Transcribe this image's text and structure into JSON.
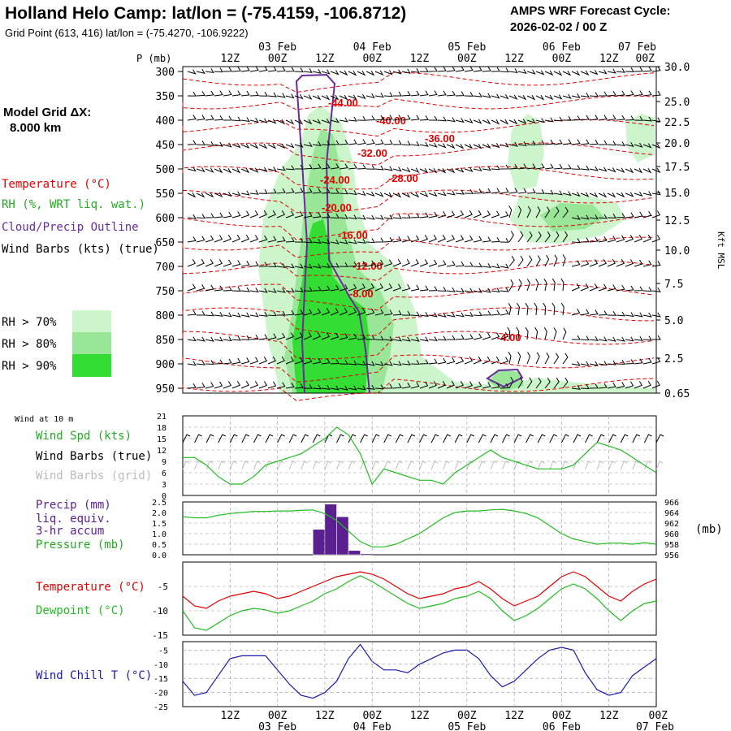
{
  "header": {
    "title": "Holland Helo Camp:  lat/lon = (-75.4159, -106.8712)",
    "subtitle": "Grid Point (613, 416) lat/lon = (-75.4270, -106.9222)",
    "cycle_label": "AMPS WRF Forecast Cycle:",
    "cycle_value": "2026-02-02 / 00  Z"
  },
  "left_panel": {
    "grid_label": "Model Grid ΔX:",
    "grid_value": "8.000 km",
    "legend_temp": "Temperature (°C)",
    "legend_rh": "RH (%, WRT liq. wat.)",
    "legend_cloud": "Cloud/Precip Outline",
    "legend_wind": "Wind Barbs (kts) (true)",
    "rh70": "RH > 70%",
    "rh80": "RH > 80%",
    "rh90": "RH > 90%"
  },
  "colors": {
    "temperature": "#e00000",
    "rh70": "#ccf5cc",
    "rh80": "#99e699",
    "rh90": "#33dd33",
    "cloud": "#6a2a9a",
    "precip": "#5a2090",
    "pressure": "#22aa22",
    "wind": "#000000",
    "windchill": "#1a1aaa",
    "dewpoint": "#22bb22",
    "grid": "#999999"
  },
  "time_axis": {
    "top_hours": [
      "12Z",
      "00Z",
      "12Z",
      "00Z",
      "12Z",
      "00Z",
      "12Z",
      "00Z",
      "12Z",
      "00Z"
    ],
    "top_dates": [
      "03 Feb",
      "04 Feb",
      "05 Feb",
      "06 Feb",
      "07 Feb"
    ],
    "bottom_hours": [
      "12Z",
      "00Z",
      "12Z",
      "00Z",
      "12Z",
      "00Z",
      "12Z",
      "00Z",
      "12Z",
      "00Z"
    ],
    "bottom_dates": [
      "03 Feb",
      "04 Feb",
      "05 Feb",
      "06 Feb",
      "07 Feb"
    ]
  },
  "chart_data": [
    {
      "type": "heatmap",
      "name": "sounding",
      "ylabel": "P (mb)",
      "y2label": "Kft MSL",
      "pressure_levels": [
        300,
        350,
        400,
        450,
        500,
        550,
        600,
        650,
        700,
        750,
        800,
        850,
        900,
        950
      ],
      "height_ticks": [
        "30.0",
        "25.0",
        "22.5",
        "20.0",
        "17.5",
        "15.0",
        "12.5",
        "10.0",
        "7.5",
        "5.0",
        "2.5",
        "0.65"
      ],
      "temp_labels": [
        "-44.00",
        "-40.00",
        "-36.00",
        "-32.00",
        "-28.00",
        "-24.00",
        "-20.00",
        "-16.00",
        "-12.00",
        "-8.00",
        "-4.00"
      ]
    },
    {
      "type": "line",
      "name": "wind10m",
      "header": "Wind at 10 m",
      "legend": [
        "Wind Spd (kts)",
        "Wind Barbs (true)",
        "Wind Barbs (grid)"
      ],
      "yticks": [
        "21",
        "18",
        "15",
        "12",
        "9",
        "6",
        "3",
        "0"
      ],
      "ylim": [
        0,
        21
      ],
      "x": [
        0,
        3,
        6,
        9,
        12,
        15,
        18,
        21,
        24,
        27,
        30,
        33,
        36,
        39,
        42,
        45,
        48,
        51,
        54,
        57,
        60,
        63,
        66,
        69,
        72,
        75,
        78,
        81,
        84,
        87,
        90,
        93,
        96,
        99,
        102,
        105,
        108,
        111,
        114,
        117,
        120
      ],
      "values": [
        10,
        10,
        8,
        5,
        3,
        3,
        5,
        8,
        9,
        10,
        11,
        13,
        15,
        18,
        16,
        11,
        3,
        7,
        6,
        5,
        4,
        4,
        3,
        6,
        8,
        10,
        12,
        10,
        9,
        8,
        7,
        7,
        7,
        8,
        11,
        14,
        13,
        12,
        10,
        8,
        6
      ]
    },
    {
      "type": "bar",
      "name": "precip",
      "legend": [
        "Precip (mm)",
        "liq. equiv.",
        "3-hr accum",
        "Pressure (mb)"
      ],
      "y1ticks": [
        "2.5",
        "2.0",
        "1.5",
        "1.0",
        "0.5",
        "0.0"
      ],
      "y2ticks": [
        "966",
        "964",
        "962",
        "960",
        "958",
        "956"
      ],
      "y2label": "(mb)",
      "ylim": [
        0,
        2.5
      ],
      "y2lim": [
        956,
        966
      ],
      "bars": [
        {
          "t": 36,
          "v": 1.2
        },
        {
          "t": 39,
          "v": 2.4
        },
        {
          "t": 42,
          "v": 1.8
        },
        {
          "t": 45,
          "v": 0.2
        },
        {
          "t": 48,
          "v": 0.05
        }
      ],
      "x": [
        0,
        3,
        6,
        9,
        12,
        15,
        18,
        21,
        24,
        27,
        30,
        33,
        36,
        39,
        42,
        45,
        48,
        51,
        54,
        57,
        60,
        63,
        66,
        69,
        72,
        75,
        78,
        81,
        84,
        87,
        90,
        93,
        96,
        99,
        102,
        105,
        108,
        111,
        114,
        117,
        120
      ],
      "values": [
        963.2,
        963.0,
        963.0,
        963.5,
        963.8,
        964.0,
        964.2,
        964.2,
        964.3,
        964.3,
        964.4,
        964.5,
        963.8,
        962.5,
        960.5,
        958.5,
        957.5,
        957.5,
        958.0,
        959.0,
        960.0,
        961.5,
        963.0,
        964.0,
        964.3,
        964.3,
        964.5,
        964.6,
        964.3,
        963.8,
        963.0,
        961.5,
        960.0,
        959.0,
        958.5,
        958.0,
        958.2,
        958.2,
        958.0,
        958.3,
        958.0
      ]
    },
    {
      "type": "line",
      "name": "temperature",
      "legend": [
        "Temperature (°C)",
        "Dewpoint (°C)"
      ],
      "yticks": [
        "-5",
        "-10",
        "-15"
      ],
      "ylim": [
        -15,
        0
      ],
      "x": [
        0,
        3,
        6,
        9,
        12,
        15,
        18,
        21,
        24,
        27,
        30,
        33,
        36,
        39,
        42,
        45,
        48,
        51,
        54,
        57,
        60,
        63,
        66,
        69,
        72,
        75,
        78,
        81,
        84,
        87,
        90,
        93,
        96,
        99,
        102,
        105,
        108,
        111,
        114,
        117,
        120
      ],
      "series": [
        {
          "name": "Temperature (°C)",
          "values": [
            -7,
            -9,
            -9.5,
            -8,
            -7,
            -6.5,
            -6,
            -6.5,
            -7.5,
            -7,
            -6,
            -5,
            -4,
            -3,
            -2.5,
            -2,
            -2.5,
            -3.5,
            -5,
            -6.5,
            -7.5,
            -7,
            -6.5,
            -5.5,
            -5,
            -4,
            -5.5,
            -7.5,
            -9,
            -8,
            -7,
            -5,
            -3,
            -2,
            -3,
            -5,
            -7,
            -8,
            -6,
            -4.5,
            -3.5
          ]
        },
        {
          "name": "Dewpoint (°C)",
          "values": [
            -10,
            -13.5,
            -14,
            -12.5,
            -11,
            -10,
            -9.5,
            -9.8,
            -10.5,
            -10,
            -9,
            -8,
            -6.5,
            -5.5,
            -4,
            -2.8,
            -4,
            -5.5,
            -7,
            -8.5,
            -9.5,
            -9,
            -8.5,
            -7.5,
            -7,
            -6,
            -7.5,
            -10,
            -12,
            -11,
            -9.5,
            -7.5,
            -5.5,
            -4.5,
            -5.5,
            -7.5,
            -10,
            -12,
            -10,
            -8.5,
            -8
          ]
        }
      ]
    },
    {
      "type": "line",
      "name": "windchill",
      "legend": [
        "Wind Chill T (°C)"
      ],
      "yticks": [
        "-5",
        "-10",
        "-15",
        "-20",
        "-25"
      ],
      "ylim": [
        -25,
        -2
      ],
      "x": [
        0,
        3,
        6,
        9,
        12,
        15,
        18,
        21,
        24,
        27,
        30,
        33,
        36,
        39,
        42,
        45,
        48,
        51,
        54,
        57,
        60,
        63,
        66,
        69,
        72,
        75,
        78,
        81,
        84,
        87,
        90,
        93,
        96,
        99,
        102,
        105,
        108,
        111,
        114,
        117,
        120
      ],
      "values": [
        -16,
        -21,
        -20,
        -14,
        -8,
        -7,
        -7,
        -7,
        -12,
        -17,
        -21,
        -22,
        -20,
        -16,
        -8,
        -3,
        -9,
        -12,
        -12,
        -13,
        -10,
        -8,
        -6,
        -5,
        -5,
        -8,
        -14,
        -18,
        -16,
        -12,
        -8,
        -5,
        -4,
        -5,
        -13,
        -19,
        -21,
        -20,
        -14,
        -11,
        -8
      ]
    }
  ]
}
